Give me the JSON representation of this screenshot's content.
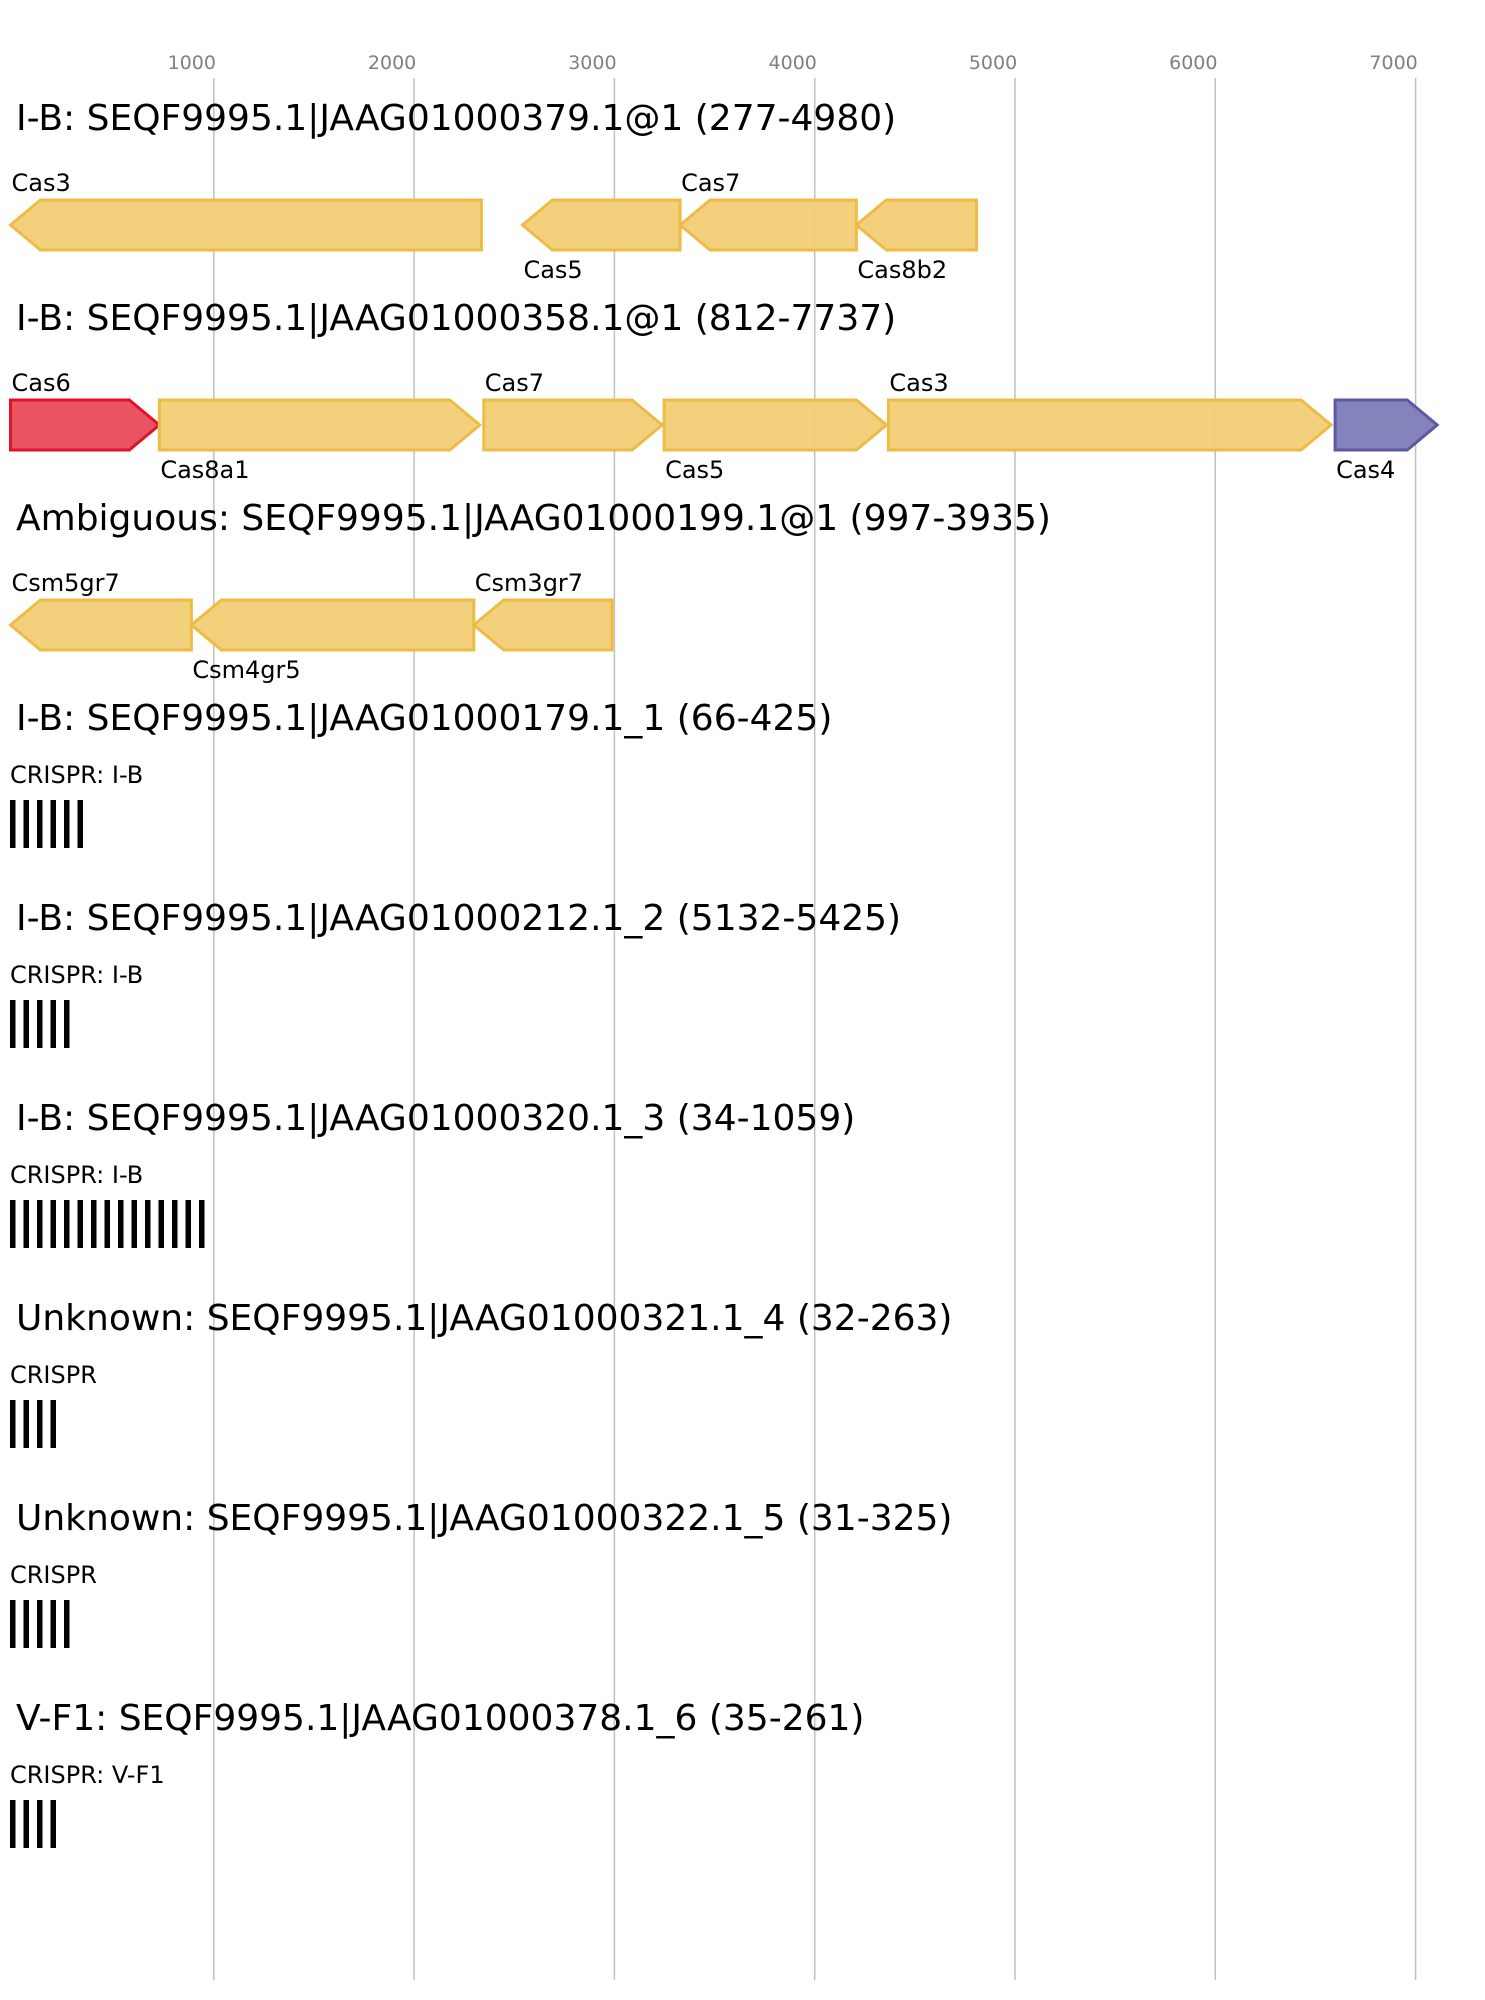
{
  "axis": {
    "ticks": [
      1000,
      2000,
      3000,
      4000,
      5000,
      6000,
      7000
    ],
    "domain": [
      0,
      7000
    ]
  },
  "colors": {
    "yellow_fill": "#f2cd75",
    "yellow_stroke": "#ecbc44",
    "red_fill": "#e84a5a",
    "red_stroke": "#dc1428",
    "purple_fill": "#7e7cb8",
    "purple_stroke": "#5c5aa4",
    "repeat": "#000000"
  },
  "tracks": [
    {
      "title": "I-B: SEQF9995.1|JAAG01000379.1@1 (277-4980)",
      "kind": "genes",
      "genes": [
        {
          "name": "Cas3",
          "start": -93,
          "end": 2258,
          "strand": "-",
          "color": "yellow",
          "label": "above"
        },
        {
          "name": "Cas5",
          "start": 2463,
          "end": 3250,
          "strand": "-",
          "color": "yellow",
          "label": "below"
        },
        {
          "name": "Cas7",
          "start": 3250,
          "end": 4130,
          "strand": "-",
          "color": "yellow",
          "label": "above"
        },
        {
          "name": "Cas8b2",
          "start": 4130,
          "end": 4730,
          "strand": "-",
          "color": "yellow",
          "label": "below"
        }
      ]
    },
    {
      "title": "I-B: SEQF9995.1|JAAG01000358.1@1 (812-7737)",
      "kind": "genes",
      "genes": [
        {
          "name": "Cas6",
          "start": -93,
          "end": 650,
          "strand": "+",
          "color": "red",
          "label": "above"
        },
        {
          "name": "Cas8a1",
          "start": 650,
          "end": 2250,
          "strand": "+",
          "color": "yellow",
          "label": "below"
        },
        {
          "name": "Cas7",
          "start": 2270,
          "end": 3160,
          "strand": "+",
          "color": "yellow",
          "label": "above"
        },
        {
          "name": "Cas5",
          "start": 3170,
          "end": 4280,
          "strand": "+",
          "color": "yellow",
          "label": "below"
        },
        {
          "name": "Cas3",
          "start": 4290,
          "end": 6500,
          "strand": "+",
          "color": "yellow",
          "label": "above"
        },
        {
          "name": "Cas4",
          "start": 6520,
          "end": 7030,
          "strand": "+",
          "color": "purple",
          "label": "below"
        }
      ]
    },
    {
      "title": "Ambiguous: SEQF9995.1|JAAG01000199.1@1 (997-3935)",
      "kind": "genes",
      "genes": [
        {
          "name": "Csm5gr7",
          "start": -93,
          "end": 810,
          "strand": "-",
          "color": "yellow",
          "label": "above"
        },
        {
          "name": "Csm4gr5",
          "start": 810,
          "end": 2220,
          "strand": "-",
          "color": "yellow",
          "label": "below"
        },
        {
          "name": "Csm3gr7",
          "start": 2220,
          "end": 2910,
          "strand": "-",
          "color": "yellow",
          "label": "above"
        }
      ]
    },
    {
      "title": "I-B: SEQF9995.1|JAAG01000179.1_1 (66-425)",
      "kind": "crispr",
      "label": "CRISPR: I-B",
      "repeats": 6
    },
    {
      "title": "I-B: SEQF9995.1|JAAG01000212.1_2 (5132-5425)",
      "kind": "crispr",
      "label": "CRISPR: I-B",
      "repeats": 5
    },
    {
      "title": "I-B: SEQF9995.1|JAAG01000320.1_3 (34-1059)",
      "kind": "crispr",
      "label": "CRISPR: I-B",
      "repeats": 15
    },
    {
      "title": "Unknown: SEQF9995.1|JAAG01000321.1_4 (32-263)",
      "kind": "crispr",
      "label": "CRISPR",
      "repeats": 4
    },
    {
      "title": "Unknown: SEQF9995.1|JAAG01000322.1_5 (31-325)",
      "kind": "crispr",
      "label": "CRISPR",
      "repeats": 5
    },
    {
      "title": "V-F1: SEQF9995.1|JAAG01000378.1_6 (35-261)",
      "kind": "crispr",
      "label": "CRISPR: V-F1",
      "repeats": 4
    }
  ]
}
